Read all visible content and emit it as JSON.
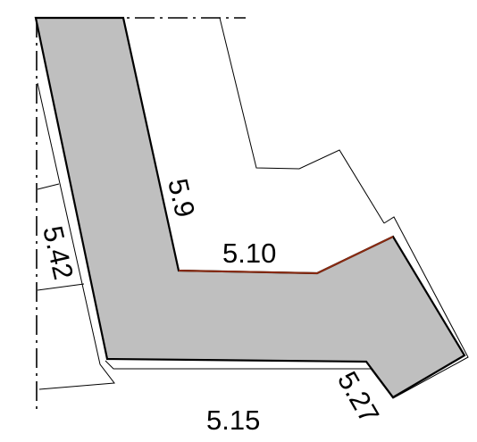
{
  "diagram": {
    "labels": {
      "edge_left": "5.9",
      "edge_inner": "5.10",
      "edge_far_left": "5.42",
      "edge_bottom": "5.15",
      "edge_right": "5.27"
    },
    "colors": {
      "parcel_fill": "#bfbfbf",
      "outline": "#000000",
      "highlight_edge": "#8b2a10",
      "axis_line": "#000000"
    }
  }
}
